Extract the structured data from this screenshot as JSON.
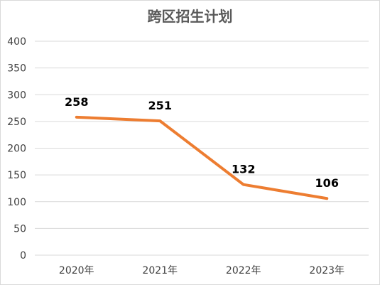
{
  "chart_data": {
    "type": "line",
    "title": "跨区招生计划",
    "categories": [
      "2020年",
      "2021年",
      "2022年",
      "2023年"
    ],
    "series": [
      {
        "values": [
          258,
          251,
          132,
          106
        ]
      }
    ],
    "data_labels": [
      "258",
      "251",
      "132",
      "106"
    ],
    "ylim": [
      0,
      400
    ],
    "yticks": [
      0,
      50,
      100,
      150,
      200,
      250,
      300,
      350,
      400
    ],
    "xlabel": "",
    "ylabel": "",
    "grid": true,
    "legend": "none",
    "line_color": "#ED7D31"
  }
}
